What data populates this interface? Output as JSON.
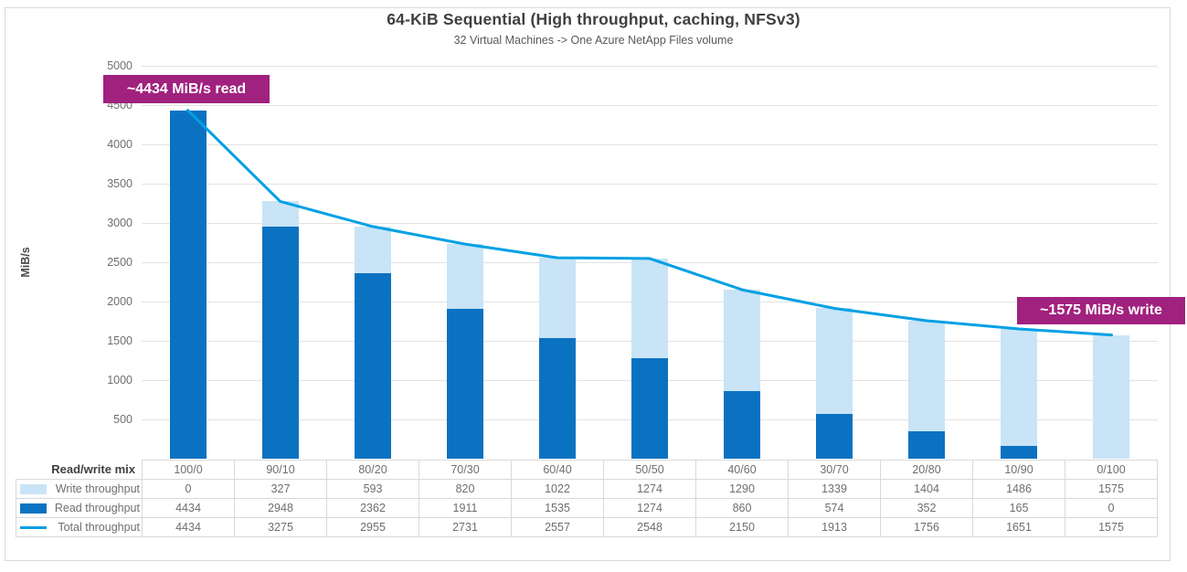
{
  "title": "64-KiB Sequential (High throughput, caching, NFSv3)",
  "subtitle": "32 Virtual Machines -> One Azure NetApp Files volume",
  "colors": {
    "read_bar": "#0b72c2",
    "write_bar": "#c9e4f6",
    "total_line": "#00a0e4",
    "annotation_bg": "#a1217e",
    "gridline": "#e3e3e3",
    "table_border": "#d9d9d9"
  },
  "chart_data": {
    "type": "bar",
    "subtype": "stacked-bars-with-total-line",
    "title": "64-KiB Sequential (High throughput, caching, NFSv3)",
    "subtitle": "32 Virtual Machines -> One Azure NetApp Files volume",
    "xlabel": "",
    "ylabel": "MiB/s",
    "ylim": [
      0,
      5000
    ],
    "yticks": [
      500,
      1000,
      1500,
      2000,
      2500,
      3000,
      3500,
      4000,
      4500,
      5000
    ],
    "grid": "horizontal",
    "legend_position": "table-rows-left",
    "categories_label": "Read/write mix",
    "categories": [
      "100/0",
      "90/10",
      "80/20",
      "70/30",
      "60/40",
      "50/50",
      "40/60",
      "30/70",
      "20/80",
      "10/90",
      "0/100"
    ],
    "series": [
      {
        "name": "Write throughput",
        "type": "bar",
        "role": "write",
        "values": [
          0,
          327,
          593,
          820,
          1022,
          1274,
          1290,
          1339,
          1404,
          1486,
          1575
        ]
      },
      {
        "name": "Read throughput",
        "type": "bar",
        "role": "read",
        "values": [
          4434,
          2948,
          2362,
          1911,
          1535,
          1274,
          860,
          574,
          352,
          165,
          0
        ]
      },
      {
        "name": "Total throughput",
        "type": "line",
        "role": "total",
        "values": [
          4434,
          3275,
          2955,
          2731,
          2557,
          2548,
          2150,
          1913,
          1756,
          1651,
          1575
        ]
      }
    ],
    "annotations": {
      "read": {
        "text": "~4434 MiB/s read",
        "value": 4434
      },
      "write": {
        "text": "~1575 MiB/s write",
        "value": 1575
      }
    }
  }
}
